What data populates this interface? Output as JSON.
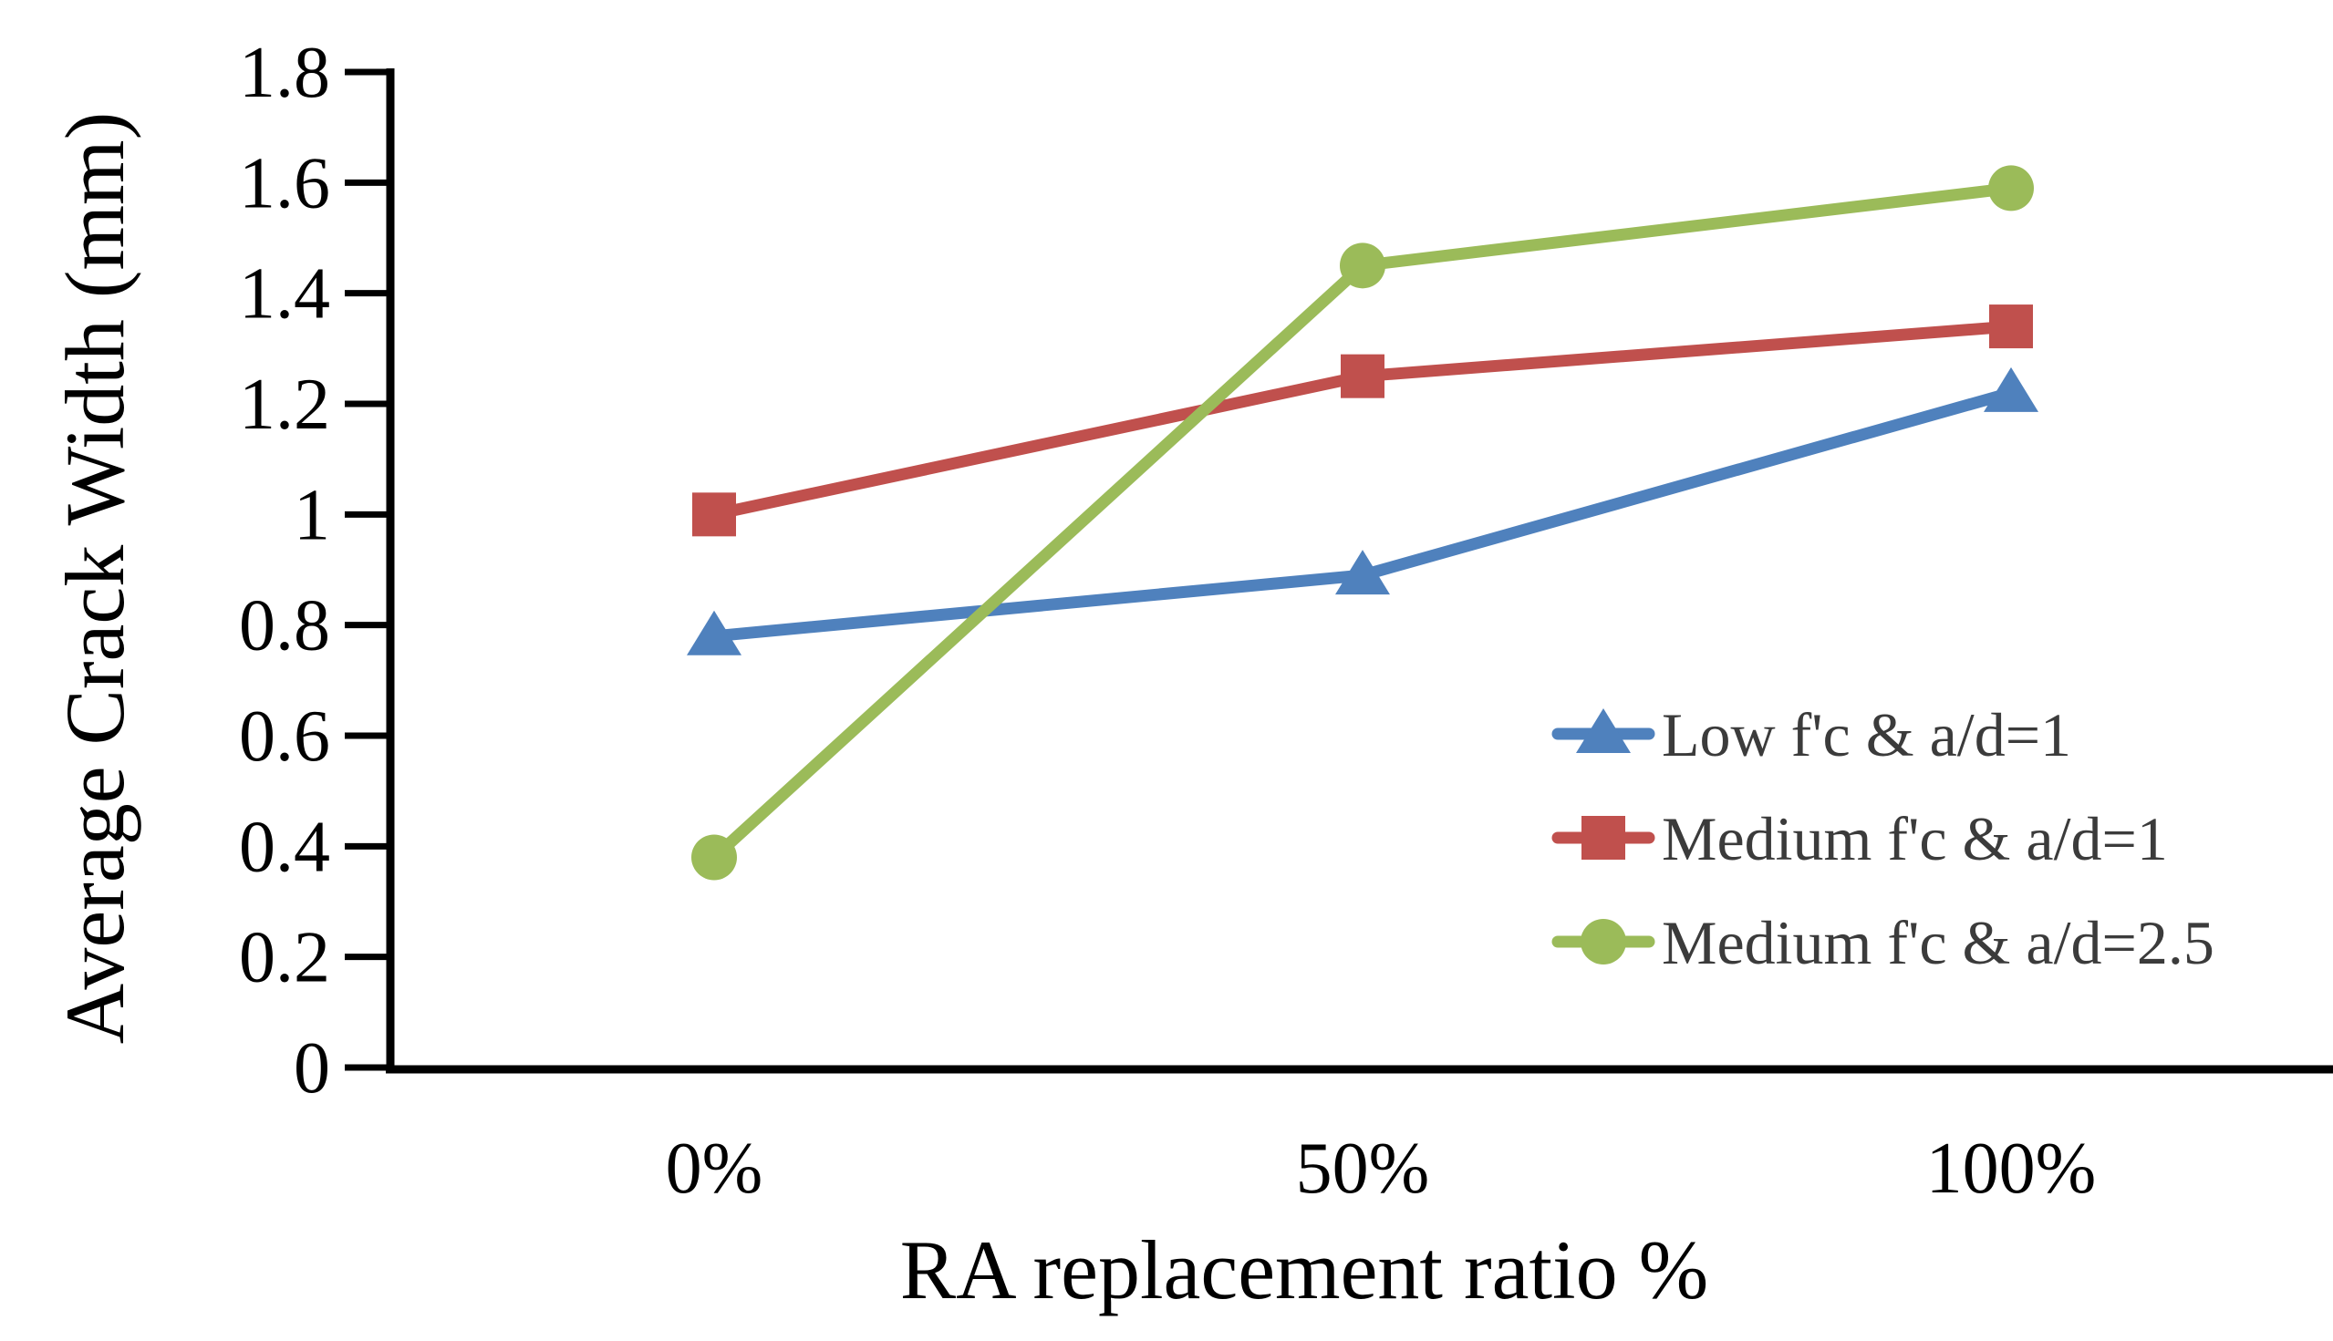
{
  "chart_data": {
    "type": "line",
    "title": "",
    "xlabel": "RA replacement ratio %",
    "ylabel": "Average Crack Width (mm)",
    "categories": [
      "0%",
      "50%",
      "100%"
    ],
    "series": [
      {
        "name": "Low f'c & a/d=1",
        "marker": "triangle",
        "color": "#4F81BD",
        "values": [
          0.78,
          0.89,
          1.22
        ]
      },
      {
        "name": "Medium f'c & a/d=1",
        "marker": "square",
        "color": "#C0504D",
        "values": [
          1.0,
          1.25,
          1.34
        ]
      },
      {
        "name": "Medium f'c & a/d=2.5",
        "marker": "circle",
        "color": "#9BBB59",
        "values": [
          0.38,
          1.45,
          1.59
        ]
      }
    ],
    "ylim": [
      0,
      1.8
    ],
    "ytick_step": 0.2,
    "ytick_labels": [
      "0",
      "0.2",
      "0.4",
      "0.6",
      "0.8",
      "1",
      "1.2",
      "1.4",
      "1.6",
      "1.8"
    ],
    "grid": false,
    "legend_position": "inside-right",
    "axis_color": "#000000",
    "text_color": "#000000"
  }
}
